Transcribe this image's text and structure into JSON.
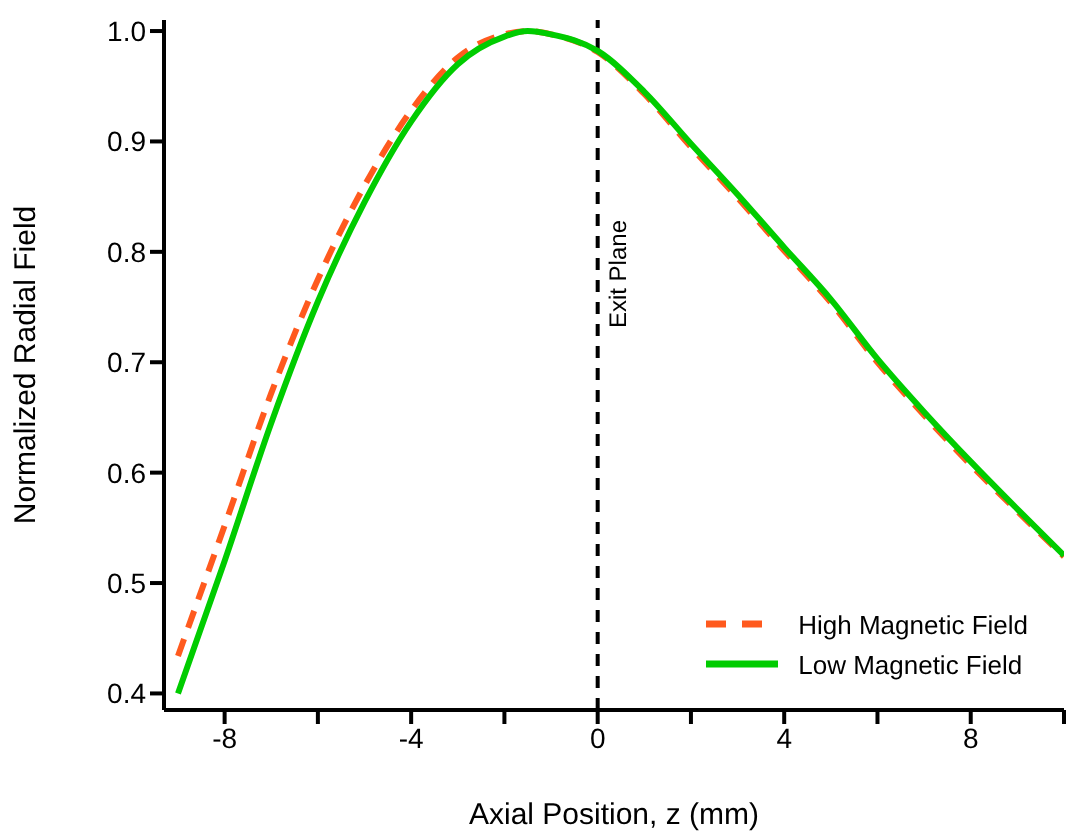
{
  "chart_data": {
    "type": "line",
    "xlabel": "Axial Position, z (mm)",
    "ylabel": "Normalized Radial Field",
    "x": [
      -9,
      -8,
      -7,
      -6,
      -5,
      -4,
      -3,
      -2,
      -1.5,
      -1,
      0,
      1,
      2,
      3,
      4,
      5,
      6,
      7,
      8,
      9,
      10
    ],
    "series": [
      {
        "name": "High Magnetic Field",
        "color": "#ff5a1e",
        "line_style": "dashed",
        "values": [
          0.434,
          0.552,
          0.672,
          0.775,
          0.86,
          0.928,
          0.976,
          0.997,
          1.0,
          0.997,
          0.981,
          0.943,
          0.895,
          0.849,
          0.801,
          0.754,
          0.7,
          0.652,
          0.607,
          0.565,
          0.524
        ]
      },
      {
        "name": "Low Magnetic Field",
        "color": "#00cc00",
        "line_style": "solid",
        "values": [
          0.4,
          0.52,
          0.645,
          0.755,
          0.845,
          0.918,
          0.97,
          0.995,
          1.0,
          0.997,
          0.982,
          0.945,
          0.898,
          0.852,
          0.804,
          0.757,
          0.703,
          0.655,
          0.61,
          0.567,
          0.525
        ]
      }
    ],
    "xlim": [
      -9.3,
      10
    ],
    "xticks": [
      -8,
      {
        "value": -6,
        "label": null
      },
      -4,
      {
        "value": -2,
        "label": null
      },
      0,
      {
        "value": 2,
        "label": null
      },
      4,
      {
        "value": 6,
        "label": null
      },
      8,
      {
        "value": 10,
        "label": null
      }
    ],
    "ylim": [
      0.385,
      1.01
    ],
    "yticks": [
      0.4,
      0.5,
      0.6,
      0.7,
      0.8,
      0.9,
      {
        "value": 1,
        "label": "1.0"
      }
    ],
    "ref_lines": [
      {
        "axis": "x",
        "value": 0,
        "label": "Exit Plane",
        "color": "#000000",
        "line_style": "dashed"
      }
    ],
    "legend": "bottom right",
    "grid": false
  }
}
